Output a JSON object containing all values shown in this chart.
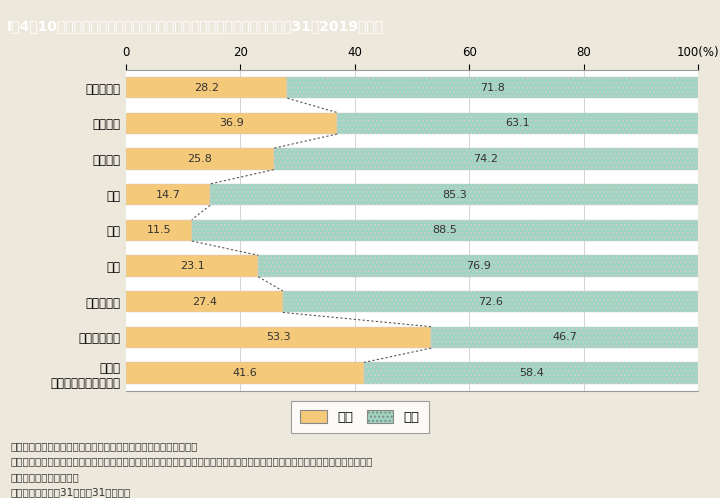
{
  "title": "I－4－10図　専門分野別に見た大学等の研究本務者の男女別割合（平成31（2019）年）",
  "categories": [
    "専門分野計",
    "人文科学",
    "社会科学",
    "理学",
    "工学",
    "農学",
    "医学・歯学",
    "薬学・看護等",
    "その他\n（心理学，家政など）"
  ],
  "female_values": [
    28.2,
    36.9,
    25.8,
    14.7,
    11.5,
    23.1,
    27.4,
    53.3,
    41.6
  ],
  "male_values": [
    71.8,
    63.1,
    74.2,
    85.3,
    88.5,
    76.9,
    72.6,
    46.7,
    58.4
  ],
  "female_color": "#F5C97A",
  "male_color": "#9DD5C0",
  "male_hatch": "....",
  "background_color": "#EDE8DC",
  "plot_bg_color": "#FFFFFF",
  "title_bg_color": "#3A6EA5",
  "title_text_color": "#FFFFFF",
  "footer_lines": [
    "（備考）１．総務省「科学技術研究調査」（令和元年）より作成。",
    "　　　　２．「大学等」は，大学の学部（大学院の研究科を含む。），短期大学，高等専門学校，大学附置研究所及び大学共同利",
    "　　　　　　用機関等。",
    "　　　　３．平成31年３月31日現在。"
  ],
  "legend_female": "女性",
  "legend_male": "男性",
  "xticks": [
    0,
    20,
    40,
    60,
    80,
    100
  ]
}
